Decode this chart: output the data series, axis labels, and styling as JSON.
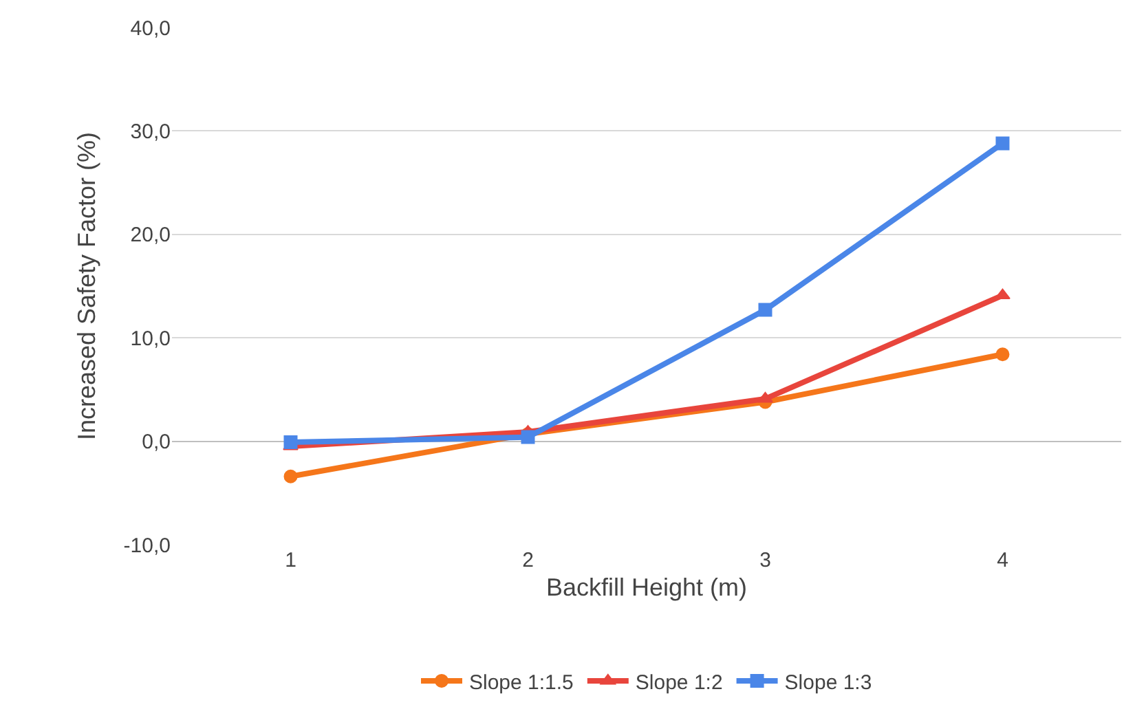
{
  "chart_data": {
    "type": "line",
    "xlabel": "Backfill Height (m)",
    "ylabel": "Increased Safety Factor (%)",
    "categories": [
      "1",
      "2",
      "3",
      "4"
    ],
    "series": [
      {
        "name": "Slope 1:1.5",
        "color": "#f5761a",
        "marker": "circle",
        "values": [
          -3.4,
          0.7,
          3.8,
          8.4
        ]
      },
      {
        "name": "Slope 1:2",
        "color": "#e8453c",
        "marker": "triangle",
        "values": [
          -0.5,
          0.9,
          4.1,
          14.1
        ]
      },
      {
        "name": "Slope 1:3",
        "color": "#4a86e8",
        "marker": "square",
        "values": [
          -0.1,
          0.4,
          12.7,
          28.8
        ]
      }
    ],
    "ylim": [
      -10,
      40
    ],
    "yticks": [
      {
        "value": -10,
        "label": "-10,0"
      },
      {
        "value": 0,
        "label": "0,0"
      },
      {
        "value": 10,
        "label": "10,0"
      },
      {
        "value": 20,
        "label": "20,0"
      },
      {
        "value": 30,
        "label": "30,0"
      },
      {
        "value": 40,
        "label": "40,0"
      }
    ],
    "grid": "y",
    "legend": "bottom",
    "line_style": "solid"
  }
}
